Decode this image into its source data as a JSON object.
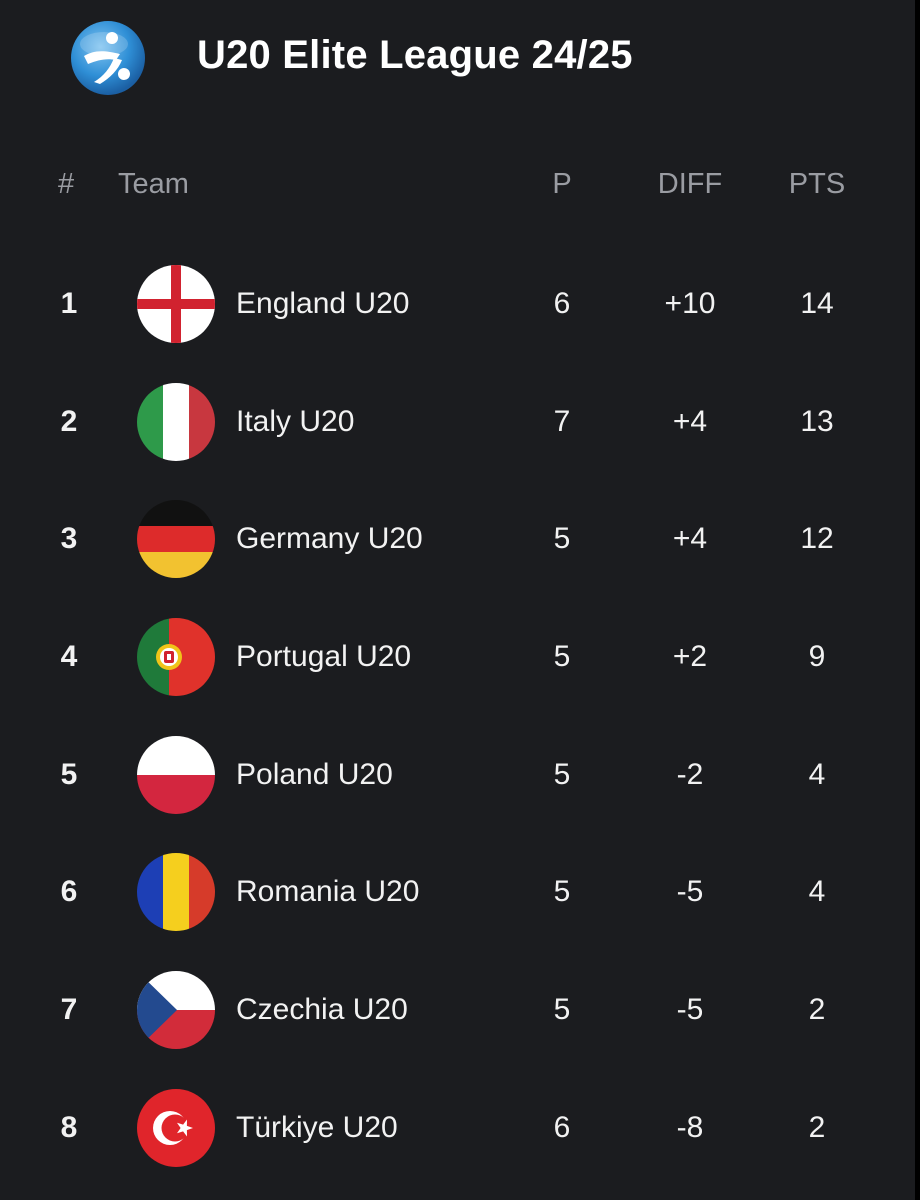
{
  "header": {
    "title": "U20 Elite League 24/25",
    "logo_icon": "league-ball-icon"
  },
  "columns": {
    "rank": "#",
    "team": "Team",
    "played": "P",
    "diff": "DIFF",
    "points": "PTS"
  },
  "standings": [
    {
      "rank": "1",
      "team": "England U20",
      "played": "6",
      "diff": "+10",
      "points": "14",
      "flag": "england-flag-icon"
    },
    {
      "rank": "2",
      "team": "Italy U20",
      "played": "7",
      "diff": "+4",
      "points": "13",
      "flag": "italy-flag-icon"
    },
    {
      "rank": "3",
      "team": "Germany U20",
      "played": "5",
      "diff": "+4",
      "points": "12",
      "flag": "germany-flag-icon"
    },
    {
      "rank": "4",
      "team": "Portugal U20",
      "played": "5",
      "diff": "+2",
      "points": "9",
      "flag": "portugal-flag-icon"
    },
    {
      "rank": "5",
      "team": "Poland U20",
      "played": "5",
      "diff": "-2",
      "points": "4",
      "flag": "poland-flag-icon"
    },
    {
      "rank": "6",
      "team": "Romania U20",
      "played": "5",
      "diff": "-5",
      "points": "4",
      "flag": "romania-flag-icon"
    },
    {
      "rank": "7",
      "team": "Czechia U20",
      "played": "5",
      "diff": "-5",
      "points": "2",
      "flag": "czechia-flag-icon"
    },
    {
      "rank": "8",
      "team": "Türkiye U20",
      "played": "6",
      "diff": "-8",
      "points": "2",
      "flag": "turkiye-flag-icon"
    }
  ],
  "colors": {
    "background": "#1b1c1f",
    "text": "#f2f2f2",
    "header_text": "#9a9ca2"
  }
}
